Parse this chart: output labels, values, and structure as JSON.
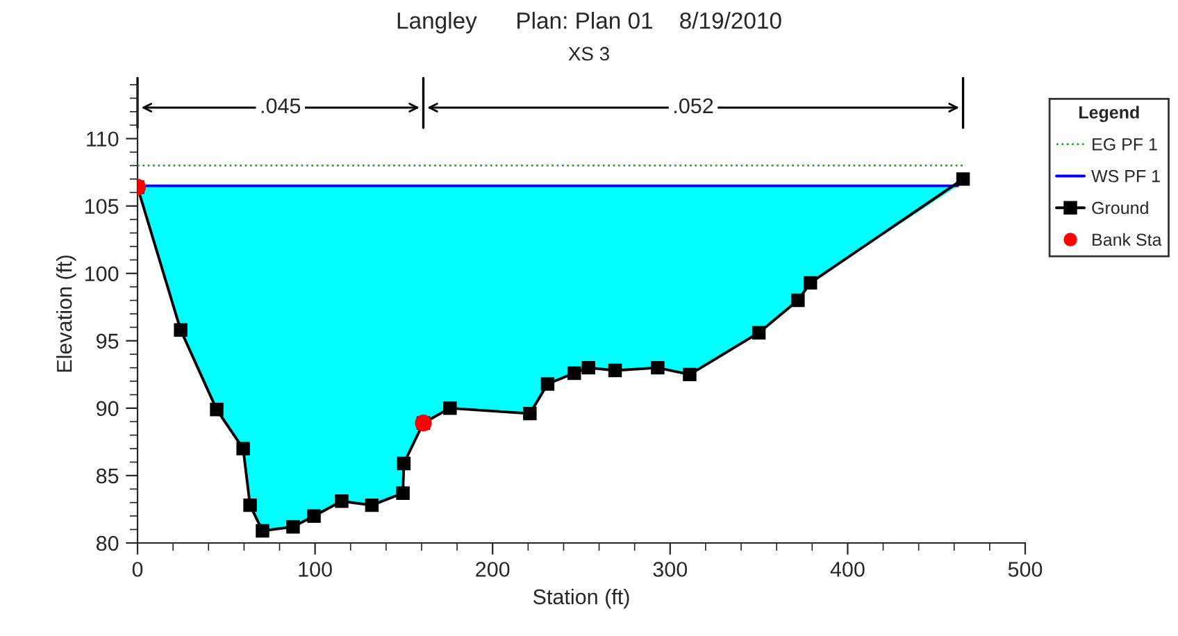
{
  "chart_data": {
    "type": "line",
    "title": "Langley      Plan: Plan 01    8/19/2010",
    "subtitle": "XS 3",
    "xlabel": "Station (ft)",
    "ylabel": "Elevation (ft)",
    "legend_title": "Legend",
    "series": [
      {
        "name": "EG PF 1",
        "color": "#2ca02c",
        "line_style": "dotted",
        "marker": "none",
        "x": [
          0,
          465
        ],
        "values": [
          108.0,
          108.0
        ]
      },
      {
        "name": "WS PF 1",
        "color": "#0000ff",
        "line_style": "solid",
        "marker": "none",
        "x": [
          0,
          24.3,
          44.6,
          59.5,
          63.4,
          70.4,
          87.6,
          99.4,
          115,
          132,
          149.5,
          150,
          161,
          176,
          221,
          231,
          246,
          254,
          269,
          293,
          311,
          350,
          372,
          379,
          462
        ],
        "values": [
          106.5,
          106.5,
          106.5,
          106.5,
          106.5,
          106.5,
          106.5,
          106.5,
          106.5,
          106.5,
          106.5,
          106.5,
          106.5,
          106.5,
          106.5,
          106.5,
          106.5,
          106.5,
          106.5,
          106.5,
          106.5,
          106.5,
          106.5,
          106.5,
          106.5
        ],
        "upper": [
          106.5,
          106.5,
          106.5,
          106.5,
          106.5,
          106.5,
          106.5,
          106.5,
          106.5,
          106.5,
          106.5,
          106.5,
          106.5,
          106.5,
          106.5,
          106.5,
          106.5,
          106.5,
          106.5,
          106.5,
          106.5,
          106.5,
          106.5,
          106.5,
          106.5
        ],
        "lower": [
          106.4,
          95.8,
          89.9,
          87.0,
          82.8,
          80.9,
          81.2,
          82.0,
          83.1,
          82.8,
          83.7,
          85.9,
          88.9,
          90.0,
          89.6,
          91.8,
          92.6,
          93.0,
          92.8,
          93.0,
          92.5,
          95.6,
          98.0,
          99.3,
          106.5
        ],
        "colors": [
          "#00ffff",
          "#00ffff",
          "#00ffff",
          "#00ffff",
          "#00ffff",
          "#00ffff",
          "#00ffff",
          "#00ffff",
          "#00ffff",
          "#00ffff",
          "#00ffff",
          "#00ffff",
          "#00ffff",
          "#00ffff",
          "#00ffff",
          "#00ffff",
          "#00ffff",
          "#00ffff",
          "#00ffff",
          "#00ffff",
          "#00ffff",
          "#00ffff",
          "#00ffff",
          "#00ffff",
          "#00ffff"
        ]
      },
      {
        "name": "Ground",
        "color": "#000000",
        "line_style": "solid",
        "marker": "square",
        "x": [
          0,
          24.3,
          44.6,
          59.5,
          63.4,
          70.4,
          87.6,
          99.4,
          115,
          132,
          149.5,
          150,
          161,
          176,
          221,
          231,
          246,
          254,
          269,
          293,
          311,
          350,
          372,
          379,
          465
        ],
        "values": [
          106.4,
          95.8,
          89.9,
          87.0,
          82.8,
          80.9,
          81.2,
          82.0,
          83.1,
          82.8,
          83.7,
          85.9,
          88.9,
          90.0,
          89.6,
          91.8,
          92.6,
          93.0,
          92.8,
          93.0,
          92.5,
          95.6,
          98.0,
          99.3,
          107.0
        ]
      },
      {
        "name": "Bank Sta",
        "type": "scatter",
        "color": "#ff0000",
        "marker": "circle",
        "x": [
          0,
          161
        ],
        "values": [
          106.4,
          88.9
        ]
      }
    ],
    "annotations": [
      {
        "text": ".045",
        "x": 80.5,
        "y": 112.3
      },
      {
        "text": ".052",
        "x": 313,
        "y": 112.3
      }
    ],
    "xlim": [
      0,
      500
    ],
    "xticks": [
      0,
      100,
      200,
      300,
      400,
      500
    ],
    "ylim": [
      80,
      114
    ],
    "yticks": [
      80,
      85,
      90,
      95,
      100,
      105,
      110
    ],
    "grid": false,
    "legend": "right"
  }
}
